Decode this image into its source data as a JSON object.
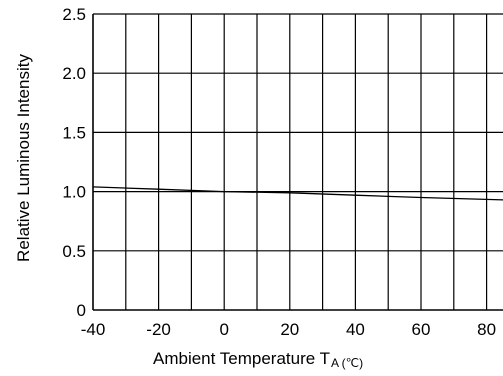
{
  "chart_data": {
    "type": "line",
    "title": "",
    "xlabel": "Ambient Temperature T",
    "xlabel_sub": "A (℃)",
    "ylabel": "Relative Luminous Intensity",
    "xlim": [
      -40,
      85
    ],
    "ylim": [
      0,
      2.5
    ],
    "x_ticks": [
      "-40",
      "-20",
      "0",
      "20",
      "40",
      "60",
      "80"
    ],
    "y_ticks": [
      "0",
      "0.5",
      "1.0",
      "1.5",
      "2.0",
      "2.5"
    ],
    "grid": true,
    "series": [
      {
        "x": [
          -40,
          -20,
          0,
          20,
          40,
          60,
          85
        ],
        "y": [
          1.04,
          1.02,
          1.0,
          0.99,
          0.97,
          0.95,
          0.93
        ]
      }
    ],
    "colors": {
      "line": "#000000",
      "grid": "#000000"
    }
  }
}
